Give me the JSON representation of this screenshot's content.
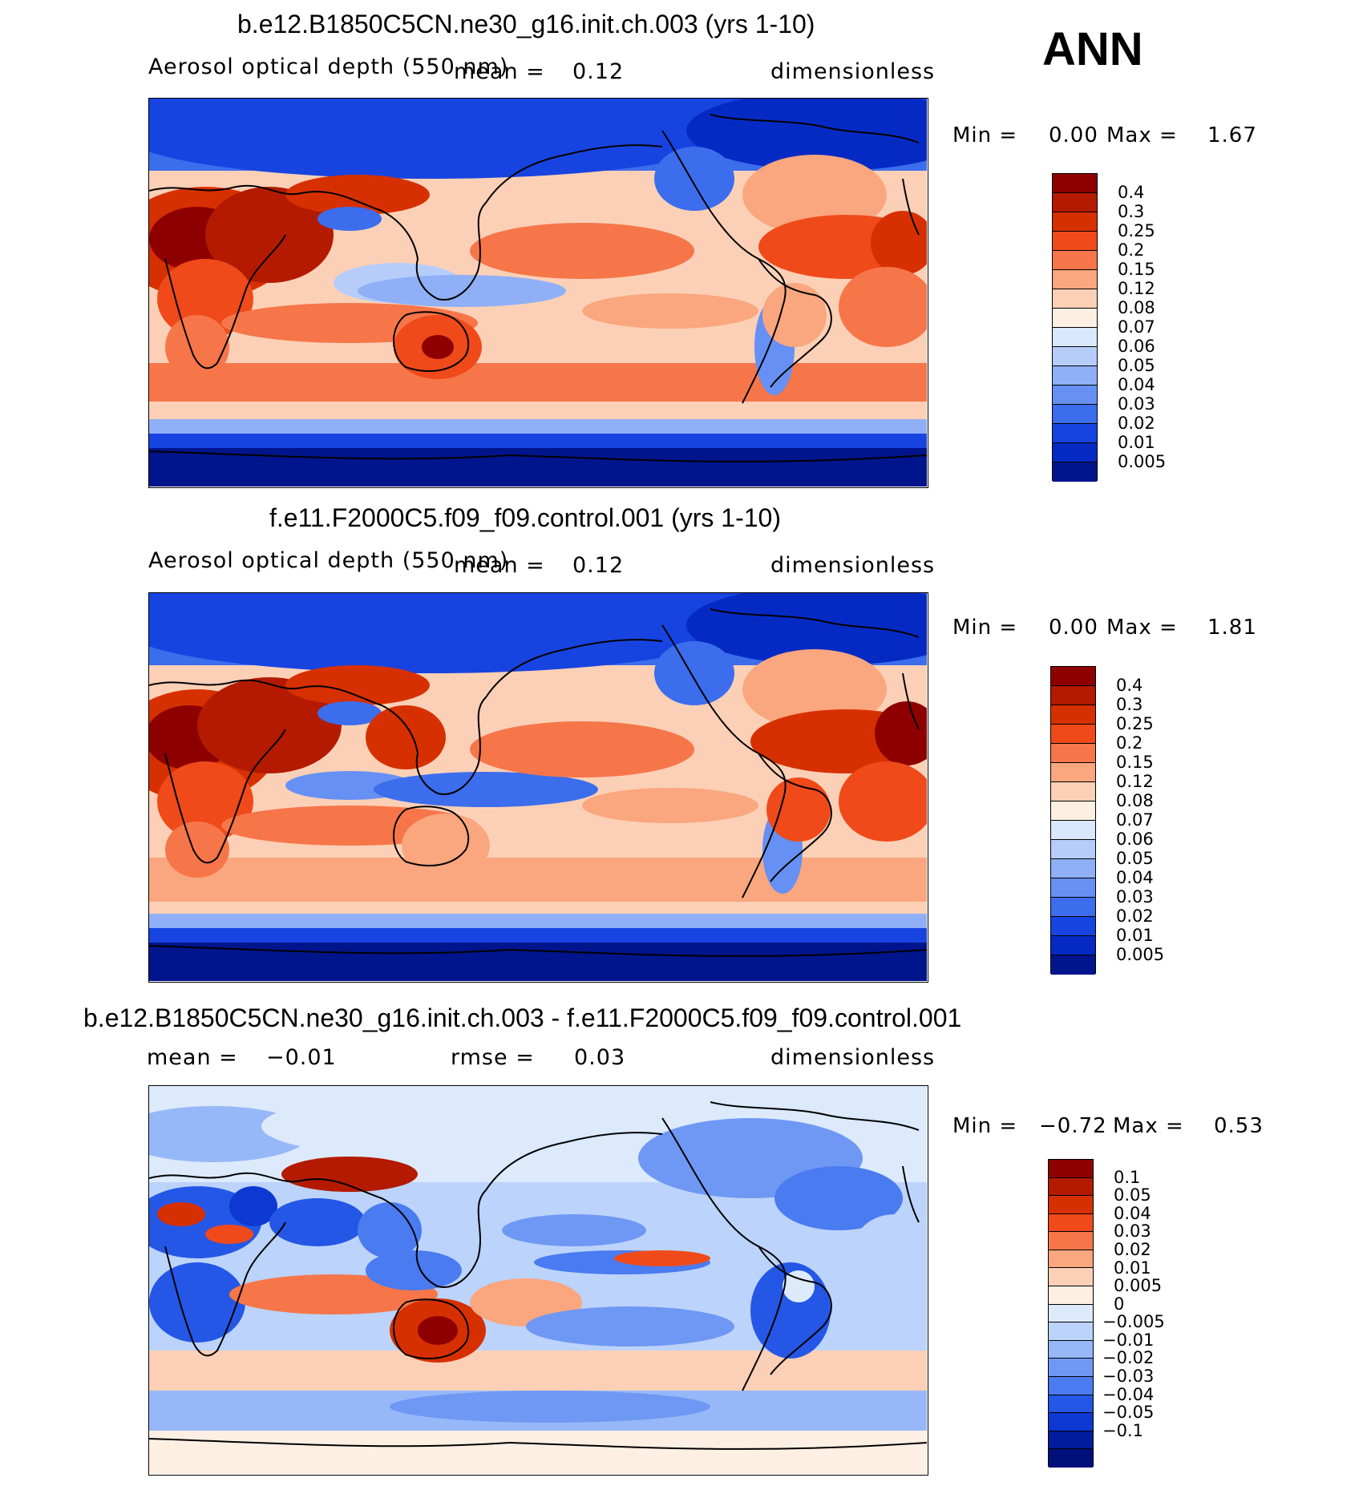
{
  "season_label": "ANN",
  "colors": {
    "abs": [
      "#8e0000",
      "#b31a00",
      "#d73000",
      "#f04a1a",
      "#f6764a",
      "#faa67e",
      "#fcd0b6",
      "#fdf0e3",
      "#d9e8fc",
      "#b6cdfa",
      "#8fb0f7",
      "#6690f3",
      "#3c6ded",
      "#1744e0",
      "#052ac4",
      "#00158c"
    ],
    "diff": [
      "#8e0000",
      "#b31a00",
      "#d73000",
      "#f04a1a",
      "#f6764a",
      "#faa67e",
      "#fcd0b6",
      "#fdf0e3",
      "#dceafc",
      "#bcd3fb",
      "#97b8f8",
      "#6f98f4",
      "#4a7bf0",
      "#2457e6",
      "#0d38d2",
      "#021c9e",
      "#00107a"
    ]
  },
  "panels": [
    {
      "title": "b.e12.B1850C5CN.ne30_g16.init.ch.003 (yrs 1-10)",
      "variable": "Aerosol optical depth (550 nm)",
      "stat_left": "mean =",
      "stat_left_value": "0.12",
      "units": "dimensionless",
      "min_label": "Min =",
      "min_value": "0.00",
      "max_label": "Max =",
      "max_value": "1.67",
      "colorbar_labels": [
        "0.4",
        "0.3",
        "0.25",
        "0.2",
        "0.15",
        "0.12",
        "0.08",
        "0.07",
        "0.06",
        "0.05",
        "0.04",
        "0.03",
        "0.02",
        "0.01",
        "0.005"
      ]
    },
    {
      "title": "f.e11.F2000C5.f09_f09.control.001 (yrs 1-10)",
      "variable": "Aerosol optical depth (550 nm)",
      "stat_left": "mean =",
      "stat_left_value": "0.12",
      "units": "dimensionless",
      "min_label": "Min =",
      "min_value": "0.00",
      "max_label": "Max =",
      "max_value": "1.81",
      "colorbar_labels": [
        "0.4",
        "0.3",
        "0.25",
        "0.2",
        "0.15",
        "0.12",
        "0.08",
        "0.07",
        "0.06",
        "0.05",
        "0.04",
        "0.03",
        "0.02",
        "0.01",
        "0.005"
      ]
    },
    {
      "title": "b.e12.B1850C5CN.ne30_g16.init.ch.003 - f.e11.F2000C5.f09_f09.control.001",
      "stat_left": "mean =",
      "stat_left_value": "−0.01",
      "stat_mid": "rmse =",
      "stat_mid_value": "0.03",
      "units": "dimensionless",
      "min_label": "Min =",
      "min_value": "−0.72",
      "max_label": "Max =",
      "max_value": "0.53",
      "colorbar_labels": [
        "0.1",
        "0.05",
        "0.04",
        "0.03",
        "0.02",
        "0.01",
        "0.005",
        "0",
        "−0.005",
        "−0.01",
        "−0.02",
        "−0.03",
        "−0.04",
        "−0.05",
        "−0.1"
      ]
    }
  ]
}
